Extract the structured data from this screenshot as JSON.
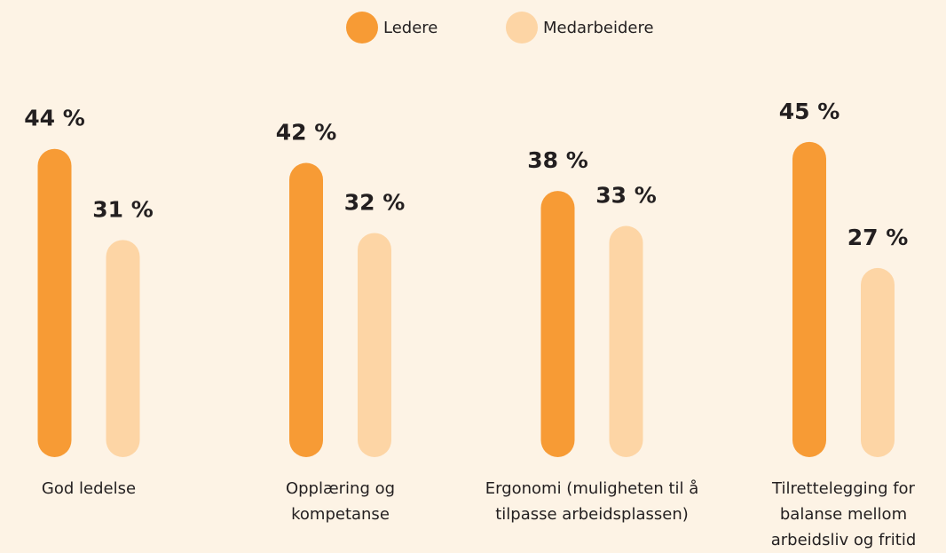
{
  "chart_data": {
    "type": "bar",
    "categories": [
      "God ledelse",
      "Opplæring og\nkompetanse",
      "Ergonomi (muligheten til å\ntilpasse arbeidsplassen)",
      "Tilrettelegging for\nbalanse mellom\narbeidsliv og fritid"
    ],
    "series": [
      {
        "name": "Ledere",
        "color": "#f79b35",
        "values": [
          44,
          42,
          38,
          45
        ],
        "value_labels": [
          "44 %",
          "42 %",
          "38 %",
          "45 %"
        ]
      },
      {
        "name": "Medarbeidere",
        "color": "#fdd5a5",
        "values": [
          31,
          32,
          33,
          27
        ],
        "value_labels": [
          "31 %",
          "32 %",
          "33 %",
          "27 %"
        ]
      }
    ],
    "ylim": [
      0,
      65
    ]
  }
}
